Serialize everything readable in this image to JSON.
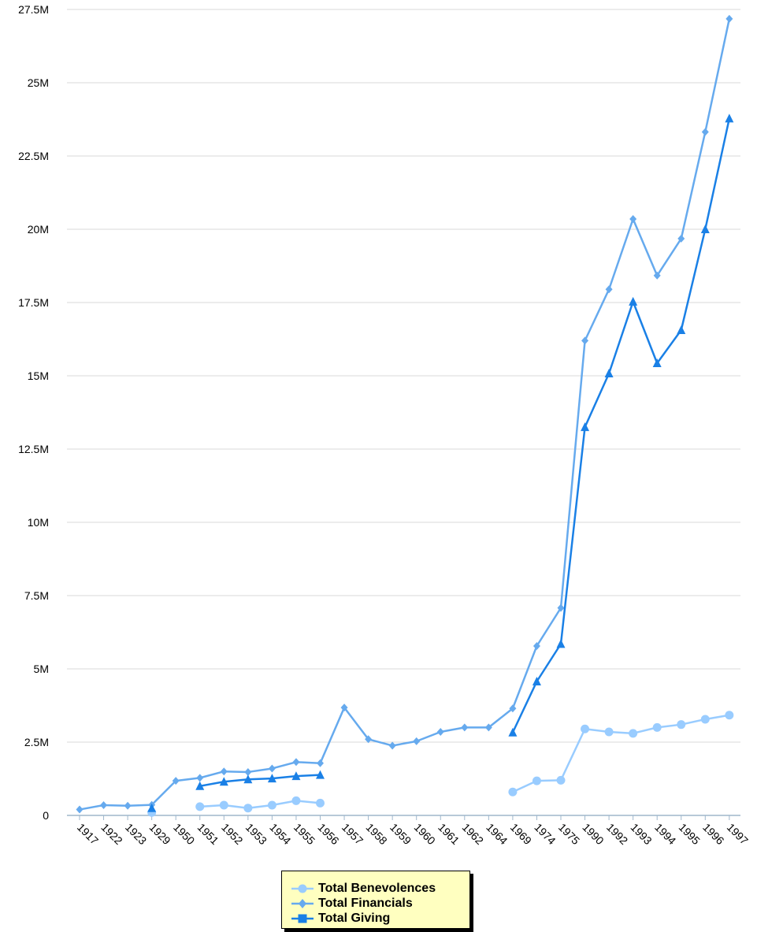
{
  "chart_data": {
    "type": "line",
    "categories": [
      "1917",
      "1922",
      "1923",
      "1929",
      "1950",
      "1951",
      "1952",
      "1953",
      "1954",
      "1955",
      "1956",
      "1957",
      "1958",
      "1959",
      "1960",
      "1961",
      "1962",
      "1964",
      "1969",
      "1974",
      "1975",
      "1990",
      "1992",
      "1993",
      "1994",
      "1995",
      "1996",
      "1997"
    ],
    "y_ticks": [
      "0",
      "2.5M",
      "5M",
      "7.5M",
      "10M",
      "12.5M",
      "15M",
      "17.5M",
      "20M",
      "22.5M",
      "25M",
      "27.5M"
    ],
    "ylim": [
      0,
      27500000
    ],
    "grid": true,
    "legend_position": "bottom-center",
    "series": [
      {
        "name": "Total Benevolences",
        "color": "#99ccff",
        "marker": "circle",
        "values": [
          null,
          null,
          null,
          100000,
          null,
          300000,
          350000,
          250000,
          350000,
          500000,
          420000,
          null,
          null,
          null,
          null,
          null,
          null,
          null,
          800000,
          1180000,
          1200000,
          2950000,
          2850000,
          2800000,
          3000000,
          3100000,
          3280000,
          3420000
        ]
      },
      {
        "name": "Total Financials",
        "color": "#66aaee",
        "marker": "diamond",
        "values": [
          200000,
          350000,
          330000,
          360000,
          1180000,
          1280000,
          1500000,
          1480000,
          1600000,
          1820000,
          1780000,
          3680000,
          2600000,
          2380000,
          2530000,
          2850000,
          3000000,
          3000000,
          3650000,
          5780000,
          7080000,
          16200000,
          17950000,
          20350000,
          18420000,
          19680000,
          23320000,
          27180000
        ]
      },
      {
        "name": "Total Giving",
        "color": "#1a80e6",
        "marker": "triangle",
        "values": [
          null,
          null,
          null,
          250000,
          null,
          1000000,
          1150000,
          1230000,
          1260000,
          1340000,
          1380000,
          null,
          null,
          null,
          null,
          null,
          null,
          null,
          2830000,
          4570000,
          5850000,
          13250000,
          15080000,
          17530000,
          15430000,
          16560000,
          20000000,
          23780000
        ]
      }
    ]
  },
  "legend": {
    "items": [
      {
        "label": "Total Benevolences",
        "color": "#99ccff",
        "icon": "circle-marker-icon"
      },
      {
        "label": "Total Financials",
        "color": "#66aaee",
        "icon": "diamond-marker-icon"
      },
      {
        "label": "Total Giving",
        "color": "#1a80e6",
        "icon": "square-marker-icon"
      }
    ]
  }
}
